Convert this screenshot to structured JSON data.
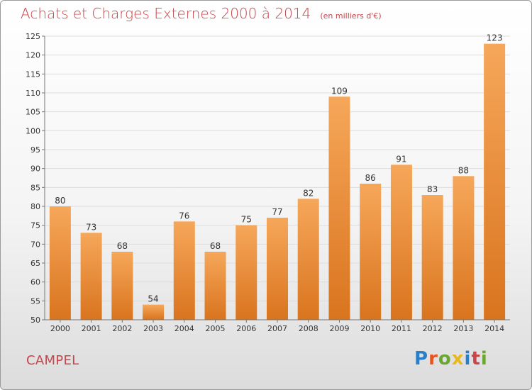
{
  "header": {
    "title": "Achats et Charges Externes 2000 à 2014",
    "unit": "(en milliers d'€)"
  },
  "footer": {
    "commune": "CAMPEL",
    "logo_text": "Proxiti",
    "logo_colors": [
      "#2a7fc9",
      "#e8541e",
      "#6aa630",
      "#e8b81e",
      "#2a7fc9",
      "#c8454b",
      "#6aa630"
    ]
  },
  "colors": {
    "title": "#c8454b",
    "bar_top": "#f6a75a",
    "bar_bottom": "#d9741e",
    "grid": "#dddddd",
    "axis_text": "#333333"
  },
  "chart_data": {
    "type": "bar",
    "categories": [
      "2000",
      "2001",
      "2002",
      "2003",
      "2004",
      "2005",
      "2006",
      "2007",
      "2008",
      "2009",
      "2010",
      "2011",
      "2012",
      "2013",
      "2014"
    ],
    "values": [
      80,
      73,
      68,
      54,
      76,
      68,
      75,
      77,
      82,
      109,
      86,
      91,
      83,
      88,
      123
    ],
    "ylim": [
      50,
      125
    ],
    "yticks": [
      50,
      55,
      60,
      65,
      70,
      75,
      80,
      85,
      90,
      95,
      100,
      105,
      110,
      115,
      120,
      125
    ],
    "grid": true
  }
}
